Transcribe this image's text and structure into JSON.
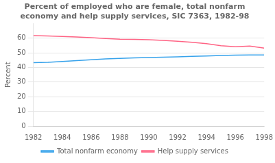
{
  "chart_data": {
    "type": "line",
    "title": "Percent of employed who are female, total nonfarm\neconomy and help supply services, SIC 7363, 1982-98",
    "ylabel": "Percent",
    "x": [
      1982,
      1983,
      1984,
      1985,
      1986,
      1987,
      1988,
      1989,
      1990,
      1991,
      1992,
      1993,
      1994,
      1995,
      1996,
      1997,
      1998
    ],
    "series": [
      {
        "name": "Total nonfarm economy",
        "values": [
          43.3,
          43.5,
          44.1,
          44.7,
          45.3,
          45.8,
          46.2,
          46.6,
          46.8,
          47.0,
          47.3,
          47.6,
          47.9,
          48.2,
          48.4,
          48.5,
          48.6
        ]
      },
      {
        "name": "Help supply services",
        "values": [
          61.8,
          61.5,
          61.2,
          60.8,
          60.4,
          59.8,
          59.3,
          59.2,
          59.0,
          58.5,
          57.9,
          57.2,
          56.3,
          54.9,
          54.2,
          54.6,
          53.2
        ]
      }
    ],
    "xlim": [
      1982,
      1998
    ],
    "xticks": [
      1982,
      1984,
      1986,
      1988,
      1990,
      1992,
      1994,
      1996,
      1998
    ],
    "ylim": [
      0,
      70
    ],
    "yticks": [
      0,
      10,
      20,
      30,
      40,
      50,
      60
    ],
    "grid": "y",
    "legend": "bottom"
  }
}
